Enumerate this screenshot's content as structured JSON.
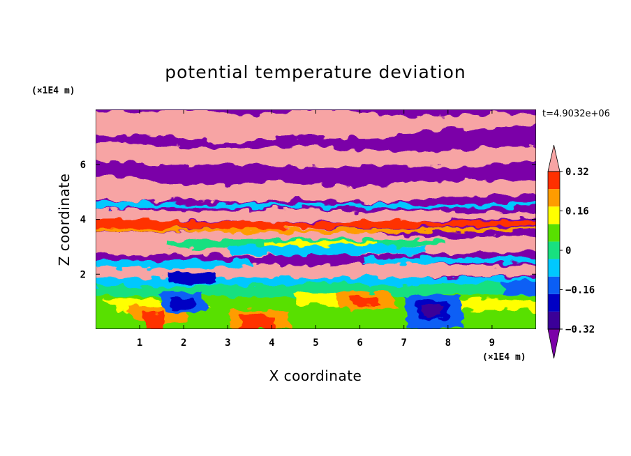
{
  "chart_data": {
    "type": "heatmap",
    "title": "potential temperature deviation",
    "xlabel": "X coordinate",
    "ylabel": "Z coordinate",
    "x_unit": "(×1E4 m)",
    "y_unit": "(×1E4 m)",
    "time_label": "t=4.9032e+06",
    "xlim": [
      0,
      10
    ],
    "ylim": [
      0,
      8
    ],
    "x_ticks": [
      1,
      2,
      3,
      4,
      5,
      6,
      7,
      8,
      9
    ],
    "y_ticks": [
      2,
      4,
      6
    ],
    "colorbar": {
      "levels": [
        -0.4,
        -0.32,
        -0.24,
        -0.16,
        -0.08,
        0,
        0.08,
        0.16,
        0.24,
        0.32,
        0.4
      ],
      "tick_values": [
        0.32,
        0.16,
        0,
        -0.16,
        -0.32
      ],
      "tick_labels": [
        "0.32",
        "0.16",
        "0",
        "−0.16",
        "−0.32"
      ],
      "colors": [
        "#7b00a8",
        "#3b0098",
        "#0000c4",
        "#0a5ef5",
        "#00c8ff",
        "#18e080",
        "#58e000",
        "#ffff00",
        "#ff9c00",
        "#ff3000",
        "#f7a4a4"
      ]
    }
  }
}
